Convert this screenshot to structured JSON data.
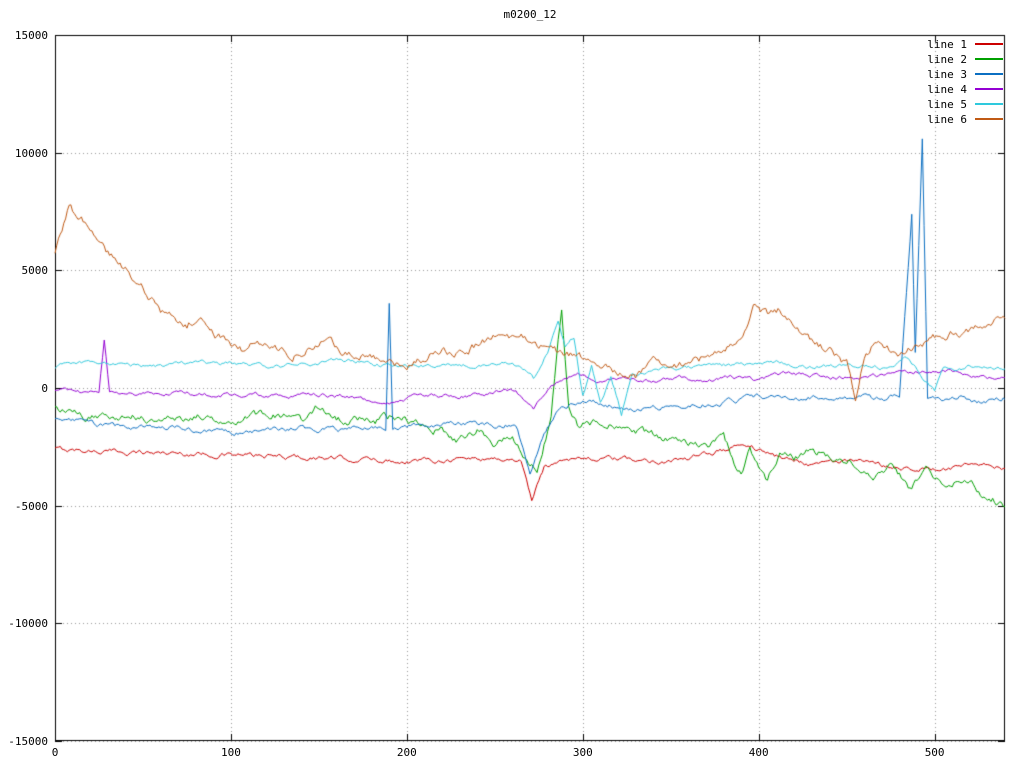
{
  "chart_data": {
    "type": "line",
    "title": "m0200_12",
    "xlabel": "",
    "ylabel": "",
    "xlim": [
      0,
      540
    ],
    "ylim": [
      -15000,
      15000
    ],
    "grid": true,
    "legend_position": "top-right",
    "x_ticks": [
      0,
      100,
      200,
      300,
      400,
      500
    ],
    "x_tick_labels": [
      "0",
      "100",
      "200",
      "300",
      "400",
      "500"
    ],
    "y_ticks": [
      -15000,
      -10000,
      -5000,
      0,
      5000,
      10000,
      15000
    ],
    "y_tick_labels": [
      "-15000",
      "-10000",
      "-5000",
      "0",
      "5000",
      "10000",
      "15000"
    ],
    "grid_color": "#999999",
    "border_color": "#000000",
    "series": [
      {
        "name": "line 1",
        "color": "#cc0000",
        "noise": 130,
        "points": [
          [
            0,
            -2600
          ],
          [
            30,
            -2700
          ],
          [
            60,
            -2750
          ],
          [
            100,
            -2850
          ],
          [
            140,
            -2950
          ],
          [
            180,
            -3050
          ],
          [
            200,
            -3100
          ],
          [
            230,
            -3000
          ],
          [
            250,
            -3000
          ],
          [
            265,
            -3100
          ],
          [
            271,
            -4750
          ],
          [
            278,
            -3400
          ],
          [
            290,
            -2950
          ],
          [
            310,
            -3000
          ],
          [
            340,
            -3100
          ],
          [
            360,
            -3050
          ],
          [
            385,
            -2500
          ],
          [
            395,
            -2450
          ],
          [
            410,
            -2900
          ],
          [
            430,
            -3200
          ],
          [
            450,
            -3100
          ],
          [
            470,
            -3300
          ],
          [
            490,
            -3400
          ],
          [
            505,
            -3500
          ],
          [
            520,
            -3300
          ],
          [
            540,
            -3400
          ]
        ]
      },
      {
        "name": "line 2",
        "color": "#00a000",
        "noise": 220,
        "points": [
          [
            0,
            -900
          ],
          [
            20,
            -1300
          ],
          [
            40,
            -1100
          ],
          [
            60,
            -1400
          ],
          [
            80,
            -1200
          ],
          [
            100,
            -1300
          ],
          [
            120,
            -1100
          ],
          [
            140,
            -1400
          ],
          [
            150,
            -800
          ],
          [
            160,
            -1300
          ],
          [
            180,
            -1400
          ],
          [
            190,
            -1300
          ],
          [
            210,
            -1500
          ],
          [
            230,
            -2200
          ],
          [
            240,
            -1800
          ],
          [
            250,
            -2400
          ],
          [
            260,
            -2000
          ],
          [
            268,
            -3200
          ],
          [
            274,
            -3400
          ],
          [
            282,
            -1200
          ],
          [
            288,
            3300
          ],
          [
            292,
            -500
          ],
          [
            298,
            -1600
          ],
          [
            310,
            -1500
          ],
          [
            325,
            -1800
          ],
          [
            340,
            -2000
          ],
          [
            355,
            -2300
          ],
          [
            370,
            -2600
          ],
          [
            380,
            -2200
          ],
          [
            390,
            -3700
          ],
          [
            395,
            -2600
          ],
          [
            405,
            -3900
          ],
          [
            412,
            -2700
          ],
          [
            420,
            -3000
          ],
          [
            430,
            -2600
          ],
          [
            440,
            -2900
          ],
          [
            455,
            -3200
          ],
          [
            465,
            -3600
          ],
          [
            475,
            -3300
          ],
          [
            485,
            -4200
          ],
          [
            495,
            -3600
          ],
          [
            505,
            -4100
          ],
          [
            515,
            -3800
          ],
          [
            525,
            -4400
          ],
          [
            535,
            -4800
          ],
          [
            540,
            -5100
          ]
        ]
      },
      {
        "name": "line 3",
        "color": "#0b6fc2",
        "noise": 130,
        "points": [
          [
            0,
            -1300
          ],
          [
            20,
            -1500
          ],
          [
            40,
            -1700
          ],
          [
            60,
            -1600
          ],
          [
            80,
            -1800
          ],
          [
            100,
            -1900
          ],
          [
            120,
            -1800
          ],
          [
            140,
            -1700
          ],
          [
            160,
            -1800
          ],
          [
            180,
            -1700
          ],
          [
            188,
            -1700
          ],
          [
            190,
            3700
          ],
          [
            192,
            -1700
          ],
          [
            210,
            -1600
          ],
          [
            230,
            -1500
          ],
          [
            250,
            -1600
          ],
          [
            262,
            -1500
          ],
          [
            270,
            -3550
          ],
          [
            278,
            -1800
          ],
          [
            288,
            -800
          ],
          [
            300,
            -550
          ],
          [
            315,
            -700
          ],
          [
            330,
            -850
          ],
          [
            345,
            -800
          ],
          [
            360,
            -750
          ],
          [
            375,
            -650
          ],
          [
            390,
            -500
          ],
          [
            400,
            -350
          ],
          [
            415,
            -500
          ],
          [
            430,
            -350
          ],
          [
            445,
            -450
          ],
          [
            460,
            -400
          ],
          [
            470,
            -500
          ],
          [
            480,
            -300
          ],
          [
            487,
            7400
          ],
          [
            489,
            1500
          ],
          [
            493,
            10650
          ],
          [
            496,
            -300
          ],
          [
            505,
            -500
          ],
          [
            515,
            -350
          ],
          [
            525,
            -600
          ],
          [
            540,
            -400
          ]
        ]
      },
      {
        "name": "line 4",
        "color": "#9400d3",
        "noise": 110,
        "points": [
          [
            0,
            -100
          ],
          [
            15,
            -200
          ],
          [
            25,
            -150
          ],
          [
            28,
            2050
          ],
          [
            31,
            -200
          ],
          [
            50,
            -250
          ],
          [
            70,
            -200
          ],
          [
            90,
            -300
          ],
          [
            110,
            -250
          ],
          [
            130,
            -350
          ],
          [
            150,
            -300
          ],
          [
            170,
            -400
          ],
          [
            185,
            -700
          ],
          [
            195,
            -500
          ],
          [
            210,
            -300
          ],
          [
            230,
            -350
          ],
          [
            250,
            -150
          ],
          [
            262,
            -100
          ],
          [
            272,
            -900
          ],
          [
            280,
            -100
          ],
          [
            290,
            500
          ],
          [
            300,
            600
          ],
          [
            310,
            300
          ],
          [
            325,
            450
          ],
          [
            340,
            300
          ],
          [
            355,
            400
          ],
          [
            370,
            300
          ],
          [
            385,
            450
          ],
          [
            400,
            350
          ],
          [
            415,
            600
          ],
          [
            430,
            500
          ],
          [
            445,
            450
          ],
          [
            460,
            400
          ],
          [
            475,
            600
          ],
          [
            490,
            700
          ],
          [
            505,
            750
          ],
          [
            520,
            550
          ],
          [
            540,
            450
          ]
        ]
      },
      {
        "name": "line 5",
        "color": "#2ec9dd",
        "noise": 110,
        "points": [
          [
            0,
            900
          ],
          [
            20,
            1100
          ],
          [
            40,
            1000
          ],
          [
            60,
            900
          ],
          [
            80,
            1100
          ],
          [
            100,
            1050
          ],
          [
            120,
            900
          ],
          [
            140,
            1000
          ],
          [
            160,
            1200
          ],
          [
            180,
            1000
          ],
          [
            200,
            900
          ],
          [
            220,
            1000
          ],
          [
            240,
            950
          ],
          [
            255,
            1100
          ],
          [
            265,
            900
          ],
          [
            272,
            400
          ],
          [
            280,
            1500
          ],
          [
            286,
            2900
          ],
          [
            290,
            1800
          ],
          [
            295,
            2200
          ],
          [
            300,
            -300
          ],
          [
            305,
            900
          ],
          [
            310,
            -700
          ],
          [
            316,
            500
          ],
          [
            322,
            -1100
          ],
          [
            328,
            600
          ],
          [
            335,
            700
          ],
          [
            350,
            800
          ],
          [
            370,
            900
          ],
          [
            390,
            1000
          ],
          [
            410,
            1100
          ],
          [
            430,
            900
          ],
          [
            450,
            1000
          ],
          [
            470,
            900
          ],
          [
            485,
            1300
          ],
          [
            495,
            300
          ],
          [
            500,
            -150
          ],
          [
            505,
            800
          ],
          [
            520,
            900
          ],
          [
            540,
            800
          ]
        ]
      },
      {
        "name": "line 6",
        "color": "#c05a15",
        "noise": 230,
        "points": [
          [
            0,
            5800
          ],
          [
            5,
            7000
          ],
          [
            8,
            7800
          ],
          [
            12,
            7300
          ],
          [
            18,
            7000
          ],
          [
            25,
            6500
          ],
          [
            30,
            5800
          ],
          [
            38,
            5200
          ],
          [
            45,
            4600
          ],
          [
            55,
            3800
          ],
          [
            60,
            3300
          ],
          [
            68,
            2900
          ],
          [
            75,
            2600
          ],
          [
            82,
            3100
          ],
          [
            90,
            2300
          ],
          [
            100,
            1900
          ],
          [
            108,
            1500
          ],
          [
            115,
            2000
          ],
          [
            125,
            1800
          ],
          [
            135,
            1400
          ],
          [
            145,
            1700
          ],
          [
            155,
            2300
          ],
          [
            162,
            1600
          ],
          [
            170,
            1400
          ],
          [
            180,
            1300
          ],
          [
            190,
            1200
          ],
          [
            200,
            900
          ],
          [
            210,
            1300
          ],
          [
            220,
            1600
          ],
          [
            230,
            1500
          ],
          [
            240,
            1800
          ],
          [
            250,
            2300
          ],
          [
            258,
            2000
          ],
          [
            265,
            2200
          ],
          [
            272,
            1800
          ],
          [
            280,
            1600
          ],
          [
            290,
            1400
          ],
          [
            300,
            1300
          ],
          [
            310,
            1100
          ],
          [
            320,
            700
          ],
          [
            330,
            500
          ],
          [
            340,
            1000
          ],
          [
            350,
            800
          ],
          [
            360,
            1100
          ],
          [
            370,
            1300
          ],
          [
            380,
            1500
          ],
          [
            390,
            2200
          ],
          [
            398,
            3500
          ],
          [
            405,
            3100
          ],
          [
            412,
            3300
          ],
          [
            420,
            2800
          ],
          [
            428,
            2200
          ],
          [
            435,
            1800
          ],
          [
            442,
            1500
          ],
          [
            450,
            1000
          ],
          [
            455,
            -600
          ],
          [
            460,
            1500
          ],
          [
            468,
            2000
          ],
          [
            475,
            1600
          ],
          [
            482,
            1400
          ],
          [
            490,
            1800
          ],
          [
            500,
            2100
          ],
          [
            510,
            2300
          ],
          [
            520,
            2400
          ],
          [
            530,
            2700
          ],
          [
            540,
            3000
          ]
        ]
      }
    ]
  }
}
